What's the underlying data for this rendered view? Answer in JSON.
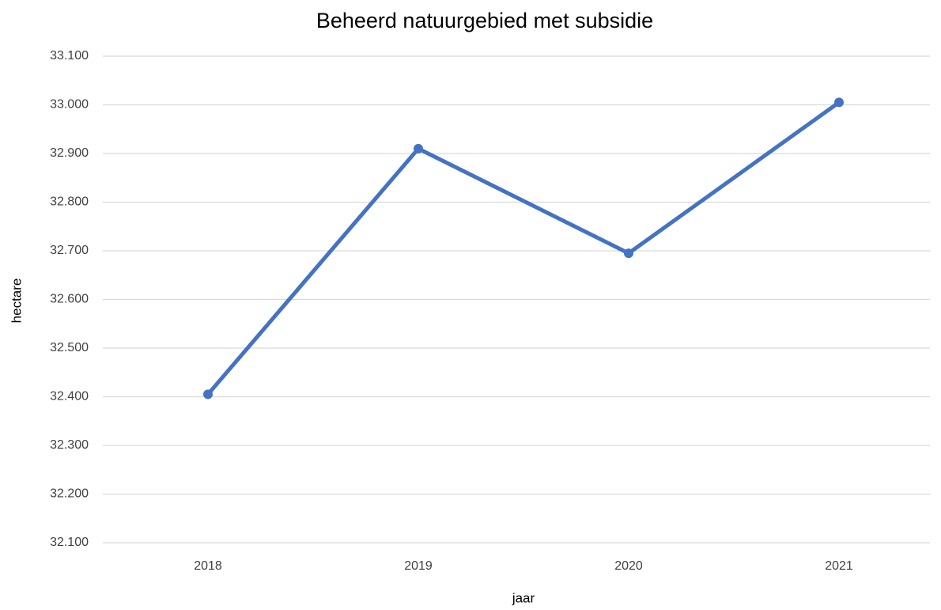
{
  "chart_data": {
    "type": "line",
    "title": "Beheerd natuurgebied met subsidie",
    "x_label": "jaar",
    "y_label": "hectare",
    "categories": [
      "2018",
      "2019",
      "2020",
      "2021"
    ],
    "series": [
      {
        "name": "hectare",
        "color": "#4472c4",
        "values": [
          32405,
          32910,
          32695,
          33005
        ]
      }
    ],
    "ylim": [
      32100,
      33100
    ],
    "yticks": [
      {
        "value": 32100,
        "label": "32.100"
      },
      {
        "value": 32200,
        "label": "32.200"
      },
      {
        "value": 32300,
        "label": "32.300"
      },
      {
        "value": 32400,
        "label": "32.400"
      },
      {
        "value": 32500,
        "label": "32.500"
      },
      {
        "value": 32600,
        "label": "32.600"
      },
      {
        "value": 32700,
        "label": "32.700"
      },
      {
        "value": 32800,
        "label": "32.800"
      },
      {
        "value": 32900,
        "label": "32.900"
      },
      {
        "value": 33000,
        "label": "33.000"
      },
      {
        "value": 33100,
        "label": "33.100"
      }
    ],
    "grid": true
  }
}
